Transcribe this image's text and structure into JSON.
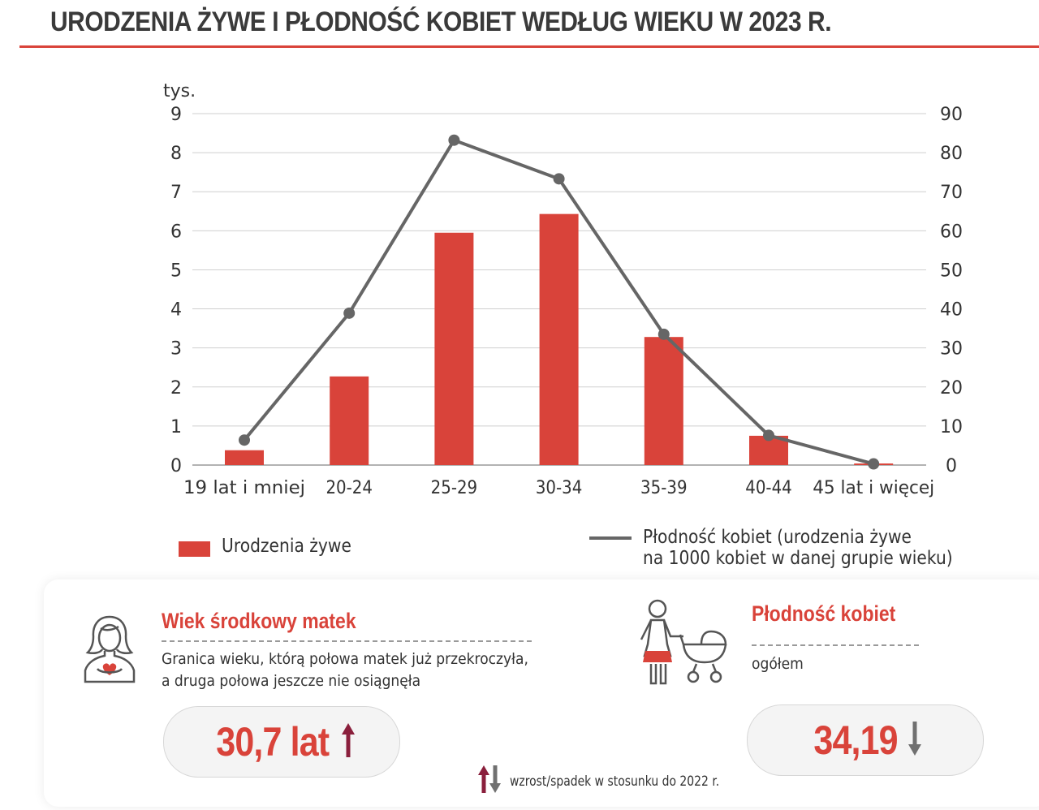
{
  "header": {
    "title": "URODZENIA ŻYWE I PŁODNOŚĆ KOBIET WEDŁUG WIEKU W 2023 R."
  },
  "chart_data": {
    "type": "bar+line",
    "title": "URODZENIA ŻYWE I PŁODNOŚĆ KOBIET WEDŁUG WIEKU W 2023 R.",
    "categories": [
      "19 lat i mniej",
      "20-24",
      "25-29",
      "30-34",
      "35-39",
      "40-44",
      "45 lat i więcej"
    ],
    "y_left_unit": "tys.",
    "y_left_range": [
      0,
      9
    ],
    "y_left_ticks": [
      "0",
      "1",
      "2",
      "3",
      "4",
      "5",
      "6",
      "7",
      "8",
      "9"
    ],
    "y_right_range": [
      0,
      90
    ],
    "y_right_ticks": [
      "0",
      "10",
      "20",
      "30",
      "40",
      "50",
      "60",
      "70",
      "80",
      "90"
    ],
    "grid": true,
    "series": [
      {
        "name": "Urodzenia żywe",
        "type": "bar",
        "axis": "left",
        "color": "#d9433a",
        "values": [
          0.38,
          2.27,
          5.95,
          6.43,
          3.28,
          0.75,
          0.04
        ]
      },
      {
        "name": "Płodność kobiet (urodzenia żywe na 1000 kobiet w danej grupie wieku)",
        "type": "line",
        "axis": "right",
        "color": "#666666",
        "values": [
          6.4,
          38.9,
          83.2,
          73.3,
          33.5,
          7.6,
          0.3
        ]
      }
    ],
    "legend": {
      "bar_label": "Urodzenia żywe",
      "line_label_1": "Płodność kobiet (urodzenia żywe",
      "line_label_2": "na 1000 kobiet w danej grupie wieku)",
      "placement": "bottom"
    }
  },
  "panel": {
    "median_age": {
      "icon": "woman-heart-icon",
      "title": "Wiek środkowy matek",
      "desc_line1": "Granica wieku, którą połowa matek już przekroczyła,",
      "desc_line2": "a druga połowa jeszcze nie osiągnęła",
      "value": "30,7 lat",
      "trend": "up",
      "trend_color": "#8a1f3c"
    },
    "fertility": {
      "icon": "mother-stroller-icon",
      "title": "Płodność kobiet",
      "subtitle": "ogółem",
      "value": "34,19",
      "trend": "down",
      "trend_color": "#707070"
    },
    "note": {
      "icon": "up-down-arrows-icon",
      "text": "wzrost/spadek w stosunku do 2022 r."
    }
  }
}
